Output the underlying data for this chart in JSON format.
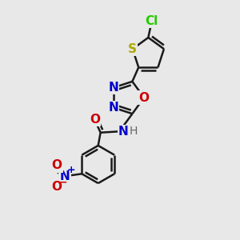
{
  "background_color": "#e8e8e8",
  "bond_color": "#1a1a1a",
  "bond_width": 1.8,
  "atoms": {
    "Cl": {
      "color": "#22cc00",
      "fontsize": 11,
      "fontweight": "bold"
    },
    "S": {
      "color": "#aaaa00",
      "fontsize": 11,
      "fontweight": "bold"
    },
    "N": {
      "color": "#0000cc",
      "fontsize": 11,
      "fontweight": "bold"
    },
    "O": {
      "color": "#cc0000",
      "fontsize": 11,
      "fontweight": "bold"
    },
    "H": {
      "color": "#666666",
      "fontsize": 10,
      "fontweight": "normal"
    }
  },
  "xlim": [
    0,
    10
  ],
  "ylim": [
    0,
    10
  ]
}
